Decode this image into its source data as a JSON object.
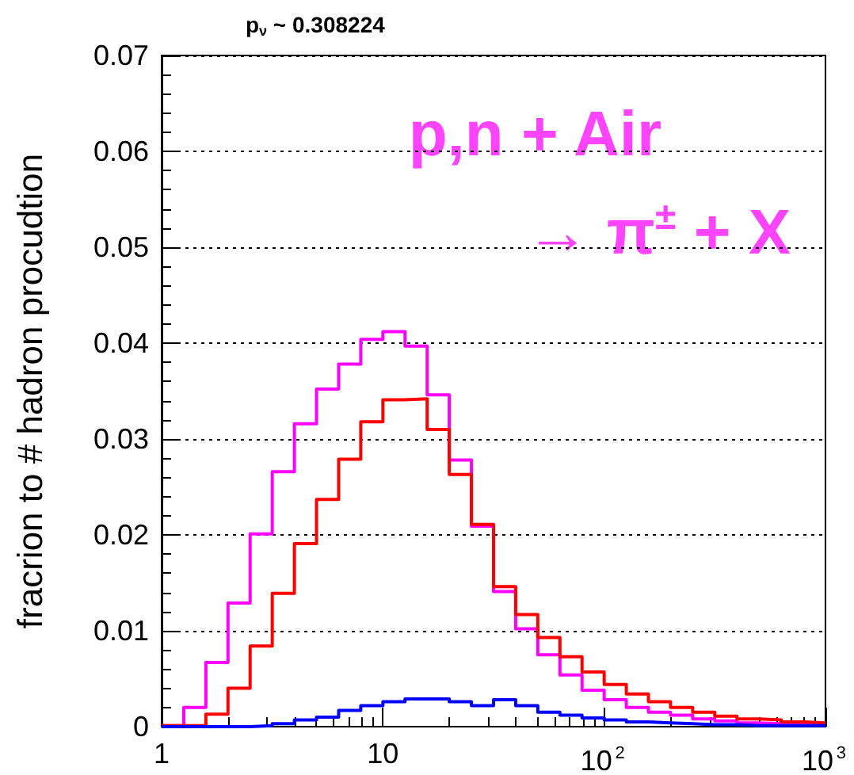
{
  "chart_data": {
    "type": "histogram",
    "title": "p$_{ν}$ ~ 0.308224",
    "ylabel": "fracrion to # hadron procudtion",
    "annotations": [
      "p,n + Air",
      "→ π$^{±}$ + X"
    ],
    "bins": [
      1,
      1.259,
      1.585,
      1.995,
      2.512,
      3.162,
      3.981,
      5.012,
      6.31,
      7.943,
      10,
      12.59,
      15.85,
      19.95,
      25.12,
      31.62,
      39.81,
      50.12,
      63.1,
      79.43,
      100,
      125.9,
      158.5,
      199.5,
      251.2,
      316.2,
      398.1,
      501.2,
      631,
      794.3,
      1000
    ],
    "series": [
      {
        "color": "#ff00ff",
        "values": [
          0.0001,
          0.002,
          0.0067,
          0.0129,
          0.0201,
          0.0266,
          0.0316,
          0.0352,
          0.0378,
          0.0404,
          0.0412,
          0.0397,
          0.0346,
          0.0278,
          0.0209,
          0.0141,
          0.0102,
          0.0075,
          0.0054,
          0.0038,
          0.0028,
          0.002,
          0.0015,
          0.0012,
          0.0008,
          0.0006,
          0.0004,
          0.0003,
          0.0002,
          0.0002
        ]
      },
      {
        "color": "#ff0000",
        "values": [
          0.0001,
          0.0001,
          0.0013,
          0.004,
          0.0084,
          0.0139,
          0.0191,
          0.0237,
          0.0279,
          0.0318,
          0.0341,
          0.0342,
          0.031,
          0.0263,
          0.0211,
          0.0146,
          0.0117,
          0.0093,
          0.0073,
          0.0057,
          0.0044,
          0.0034,
          0.0026,
          0.002,
          0.0015,
          0.0011,
          0.0008,
          0.0007,
          0.0005,
          0.0004
        ]
      },
      {
        "color": "#0000ff",
        "values": [
          0,
          0,
          0,
          0,
          0.0001,
          0.0003,
          0.0007,
          0.001,
          0.0017,
          0.0022,
          0.0026,
          0.0029,
          0.0029,
          0.0026,
          0.0022,
          0.0028,
          0.0022,
          0.0015,
          0.0012,
          0.0009,
          0.0007,
          0.0005,
          0.0004,
          0.0003,
          0.0002,
          0.0002,
          0.0001,
          0.0001,
          0.0001,
          0.0001
        ]
      }
    ],
    "xlim": [
      1,
      1000
    ],
    "xticks": [
      1,
      10,
      {
        "value": 100,
        "label": "10$^{2}$"
      },
      {
        "value": 1000,
        "label": "10$^{3}$"
      }
    ],
    "ylim": [
      0,
      0.07
    ],
    "yticks": [
      0,
      0.01,
      0.02,
      0.03,
      0.04,
      0.05,
      0.06,
      0.07
    ],
    "log": "x",
    "grid": "y"
  }
}
